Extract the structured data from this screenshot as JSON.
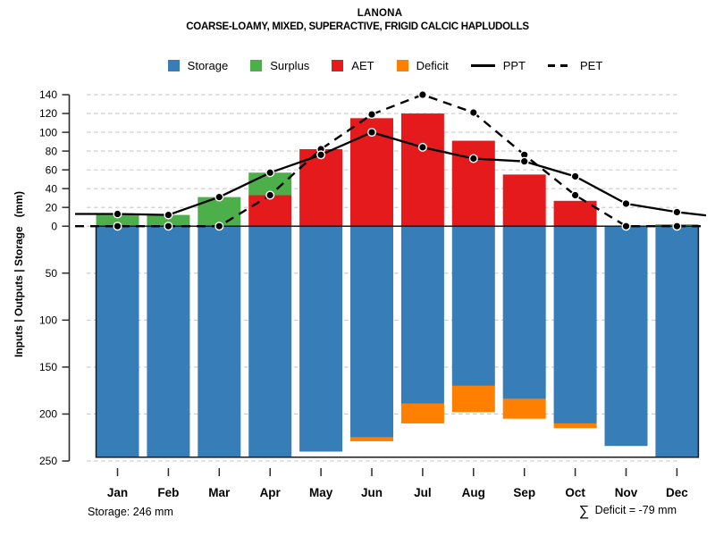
{
  "header": {
    "title": "LANONA",
    "subtitle": "COARSE-LOAMY, MIXED, SUPERACTIVE, FRIGID CALCIC HAPLUDOLLS"
  },
  "legend": {
    "items": [
      {
        "label": "Storage",
        "swatch": "square",
        "color": "#377EB8"
      },
      {
        "label": "Surplus",
        "swatch": "square",
        "color": "#4DAF4A"
      },
      {
        "label": "AET",
        "swatch": "square",
        "color": "#E41A1C"
      },
      {
        "label": "Deficit",
        "swatch": "square",
        "color": "#FF7F00"
      },
      {
        "label": "PPT",
        "swatch": "line-solid",
        "color": "#000000"
      },
      {
        "label": "PET",
        "swatch": "line-dashed",
        "color": "#000000"
      }
    ]
  },
  "yaxis": {
    "title": "Inputs | Outputs | Storage   (mm)",
    "upper_ticks": [
      140,
      120,
      100,
      80,
      60,
      40,
      20,
      0
    ],
    "lower_ticks": [
      50,
      100,
      150,
      200,
      250
    ]
  },
  "footer": {
    "left_text": "Storage: 246 mm",
    "sum_symbol": "∑",
    "right_text": " Deficit = -79 mm"
  },
  "colors": {
    "storage": "#377EB8",
    "surplus": "#4DAF4A",
    "aet": "#E41A1C",
    "deficit": "#FF7F00",
    "line": "#000000",
    "grid": "#C9C9C9",
    "axis": "#2B2B2B",
    "capacity_box": "#1A1A1A"
  },
  "chart_data": {
    "type": "bar",
    "subtype": "monthly-soil-water-balance",
    "title": "LANONA",
    "subtitle": "COARSE-LOAMY, MIXED, SUPERACTIVE, FRIGID CALCIC HAPLUDOLLS",
    "ylabel": "Inputs | Outputs | Storage (mm)",
    "categories": [
      "Jan",
      "Feb",
      "Mar",
      "Apr",
      "May",
      "Jun",
      "Jul",
      "Aug",
      "Sep",
      "Oct",
      "Nov",
      "Dec"
    ],
    "series": [
      {
        "name": "Storage",
        "type": "bar-down",
        "values": [
          246,
          246,
          246,
          246,
          240,
          225,
          189,
          170,
          184,
          210,
          234,
          246
        ]
      },
      {
        "name": "AET",
        "type": "bar-up-stack-bottom",
        "values": [
          0,
          0,
          0,
          33,
          82,
          115,
          120,
          91,
          55,
          27,
          0,
          0
        ]
      },
      {
        "name": "Surplus",
        "type": "bar-up-stack-top",
        "values": [
          13,
          12,
          31,
          24,
          0,
          0,
          0,
          0,
          0,
          0,
          0,
          2
        ]
      },
      {
        "name": "Deficit",
        "type": "bar-down-below-storage",
        "values": [
          0,
          0,
          0,
          0,
          0,
          4,
          21,
          28,
          21,
          5,
          0,
          0
        ]
      },
      {
        "name": "PPT",
        "type": "line-solid",
        "values": [
          13,
          12,
          31,
          57,
          76,
          100,
          84,
          72,
          69,
          53,
          24,
          15
        ]
      },
      {
        "name": "PET",
        "type": "line-dashed",
        "values": [
          0,
          0,
          0,
          33,
          82,
          119,
          140,
          121,
          76,
          33,
          0,
          0
        ]
      }
    ],
    "ylim_upper": [
      0,
      140
    ],
    "ylim_lower_storage_depth": [
      0,
      250
    ],
    "grid": "dashed",
    "legend_position": "top-center",
    "storage_capacity_mm": 246,
    "sum_deficit_mm": -79
  }
}
